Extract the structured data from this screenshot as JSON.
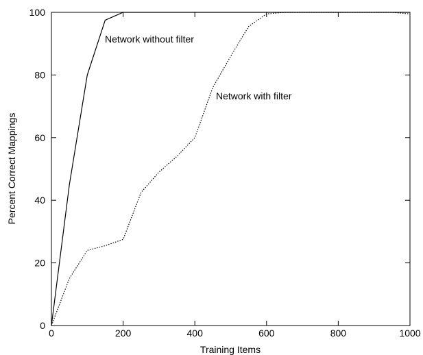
{
  "chart_data": {
    "type": "line",
    "xlabel": "Training Items",
    "ylabel": "Percent Correct Mappings",
    "xlim": [
      0,
      1000
    ],
    "ylim": [
      0,
      100
    ],
    "xticks": [
      0,
      200,
      400,
      600,
      800,
      1000
    ],
    "yticks": [
      0,
      20,
      40,
      60,
      80,
      100
    ],
    "grid": false,
    "series": [
      {
        "name": "Network without filter",
        "style": "solid",
        "color": "#000000",
        "x": [
          0,
          50,
          100,
          150,
          200,
          250,
          300,
          350,
          400,
          450,
          500,
          550,
          600,
          650,
          700,
          750,
          800,
          850,
          900,
          950,
          1000
        ],
        "y": [
          0,
          45,
          80,
          97.5,
          100,
          100,
          100,
          100,
          100,
          100,
          100,
          100,
          100,
          100,
          100,
          100,
          100,
          100,
          100,
          100,
          100
        ]
      },
      {
        "name": "Network with filter",
        "style": "dotted",
        "color": "#000000",
        "x": [
          0,
          50,
          100,
          150,
          200,
          250,
          300,
          350,
          400,
          450,
          500,
          550,
          600,
          650,
          700,
          750,
          800,
          850,
          900,
          950,
          1000
        ],
        "y": [
          0,
          15,
          24,
          25.5,
          27.5,
          42.5,
          49,
          54,
          60,
          76,
          86,
          95.5,
          99.5,
          100,
          100,
          100,
          100,
          100,
          100,
          100,
          99.5
        ]
      }
    ]
  }
}
